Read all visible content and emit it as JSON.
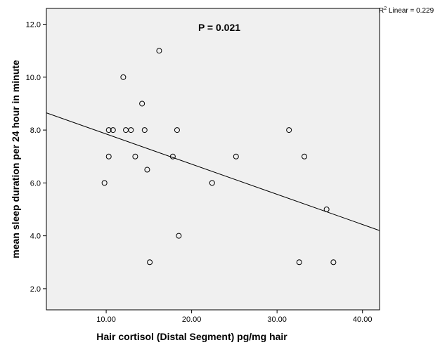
{
  "chart_data": {
    "type": "scatter",
    "xlabel": "Hair cortisol (Distal Segment) pg/mg hair",
    "ylabel": "mean sleep duration per 24 hour in minute",
    "xlim": [
      3.0,
      42.0
    ],
    "ylim": [
      1.2,
      12.6
    ],
    "x_ticks": [
      "10.00",
      "20.00",
      "30.00",
      "40.00"
    ],
    "y_ticks": [
      "2.0",
      "4.0",
      "6.0",
      "8.0",
      "10.0",
      "12.0"
    ],
    "x_tick_values": [
      10,
      20,
      30,
      40
    ],
    "y_tick_values": [
      2,
      4,
      6,
      8,
      10,
      12
    ],
    "points": [
      {
        "x": 9.8,
        "y": 6.0
      },
      {
        "x": 10.3,
        "y": 7.0
      },
      {
        "x": 10.3,
        "y": 8.0
      },
      {
        "x": 10.8,
        "y": 8.0
      },
      {
        "x": 12.0,
        "y": 10.0
      },
      {
        "x": 12.3,
        "y": 8.0
      },
      {
        "x": 12.9,
        "y": 8.0
      },
      {
        "x": 13.4,
        "y": 7.0
      },
      {
        "x": 14.2,
        "y": 9.0
      },
      {
        "x": 14.5,
        "y": 8.0
      },
      {
        "x": 14.8,
        "y": 6.5
      },
      {
        "x": 15.1,
        "y": 3.0
      },
      {
        "x": 16.2,
        "y": 11.0
      },
      {
        "x": 17.8,
        "y": 7.0
      },
      {
        "x": 18.3,
        "y": 8.0
      },
      {
        "x": 18.5,
        "y": 4.0
      },
      {
        "x": 22.4,
        "y": 6.0
      },
      {
        "x": 25.2,
        "y": 7.0
      },
      {
        "x": 31.4,
        "y": 8.0
      },
      {
        "x": 32.6,
        "y": 3.0
      },
      {
        "x": 33.2,
        "y": 7.0
      },
      {
        "x": 35.8,
        "y": 5.0
      },
      {
        "x": 36.6,
        "y": 3.0
      }
    ],
    "fit_line": {
      "x": [
        3.0,
        42.0
      ],
      "y": [
        8.65,
        4.2
      ]
    },
    "annotation": "P = 0.021",
    "r2_prefix": "R",
    "r2_sup": "2",
    "r2_suffix": " Linear = 0.229",
    "grid": false,
    "plot_background": "#f0f0f0",
    "point_color": "#000000",
    "line_color": "#000000"
  }
}
